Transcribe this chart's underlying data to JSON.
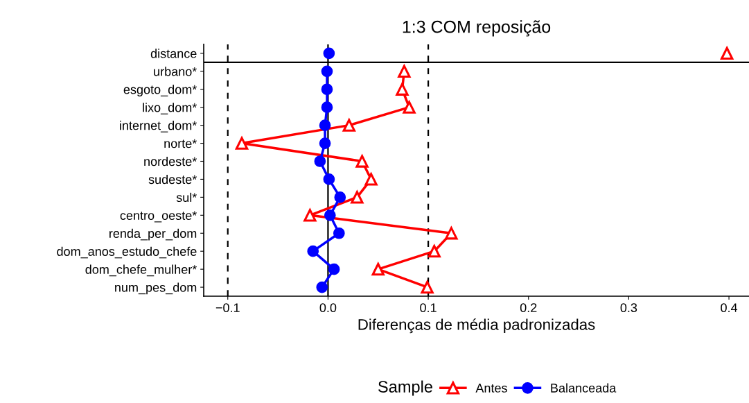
{
  "chart_data": {
    "type": "line",
    "orientation": "horizontal",
    "title": "1:3 COM reposição",
    "xlabel": "Diferenças de média padronizadas",
    "legend_title": "Sample",
    "legend": "bottom",
    "grid": false,
    "categories": [
      "distance",
      "urbano*",
      "esgoto_dom*",
      "lixo_dom*",
      "internet_dom*",
      "norte*",
      "nordeste*",
      "sudeste*",
      "sul*",
      "centro_oeste*",
      "renda_per_dom",
      "dom_anos_estudo_chefe",
      "dom_chefe_mulher*",
      "num_pes_dom"
    ],
    "series": [
      {
        "name": "Antes",
        "color": "#ff0000",
        "marker": "triangle",
        "values": [
          null,
          0.076,
          0.074,
          0.081,
          0.021,
          -0.086,
          0.034,
          0.043,
          0.029,
          -0.018,
          0.123,
          0.106,
          0.05,
          0.099
        ]
      },
      {
        "name": "Balanceada",
        "color": "#0000ff",
        "marker": "circle",
        "values": [
          null,
          -0.001,
          -0.001,
          -0.001,
          -0.003,
          -0.003,
          -0.008,
          0.001,
          0.012,
          0.002,
          0.011,
          -0.015,
          0.006,
          -0.006
        ]
      },
      {
        "type": "scatter",
        "color": "#ff0000",
        "marker": "triangle",
        "values": [
          0.398,
          null,
          null,
          null,
          null,
          null,
          null,
          null,
          null,
          null,
          null,
          null,
          null,
          null
        ]
      },
      {
        "type": "scatter",
        "color": "#0000ff",
        "marker": "circle",
        "values": [
          0.001,
          null,
          null,
          null,
          null,
          null,
          null,
          null,
          null,
          null,
          null,
          null,
          null,
          null
        ]
      }
    ],
    "xlim": [
      -0.124,
      0.42
    ],
    "xticks": [
      {
        "value": -0.1,
        "label": "−0.1"
      },
      {
        "value": 0,
        "label": "0.0"
      },
      0.1,
      0.2,
      0.3,
      0.4
    ],
    "ref_lines": [
      {
        "axis": "x",
        "value": -0.1,
        "line_style": "dashed",
        "color": "#000000"
      },
      {
        "axis": "x",
        "value": 0.1,
        "line_style": "dashed",
        "color": "#000000"
      },
      {
        "axis": "x",
        "value": 0,
        "line_style": "solid",
        "color": "#000000"
      }
    ]
  }
}
